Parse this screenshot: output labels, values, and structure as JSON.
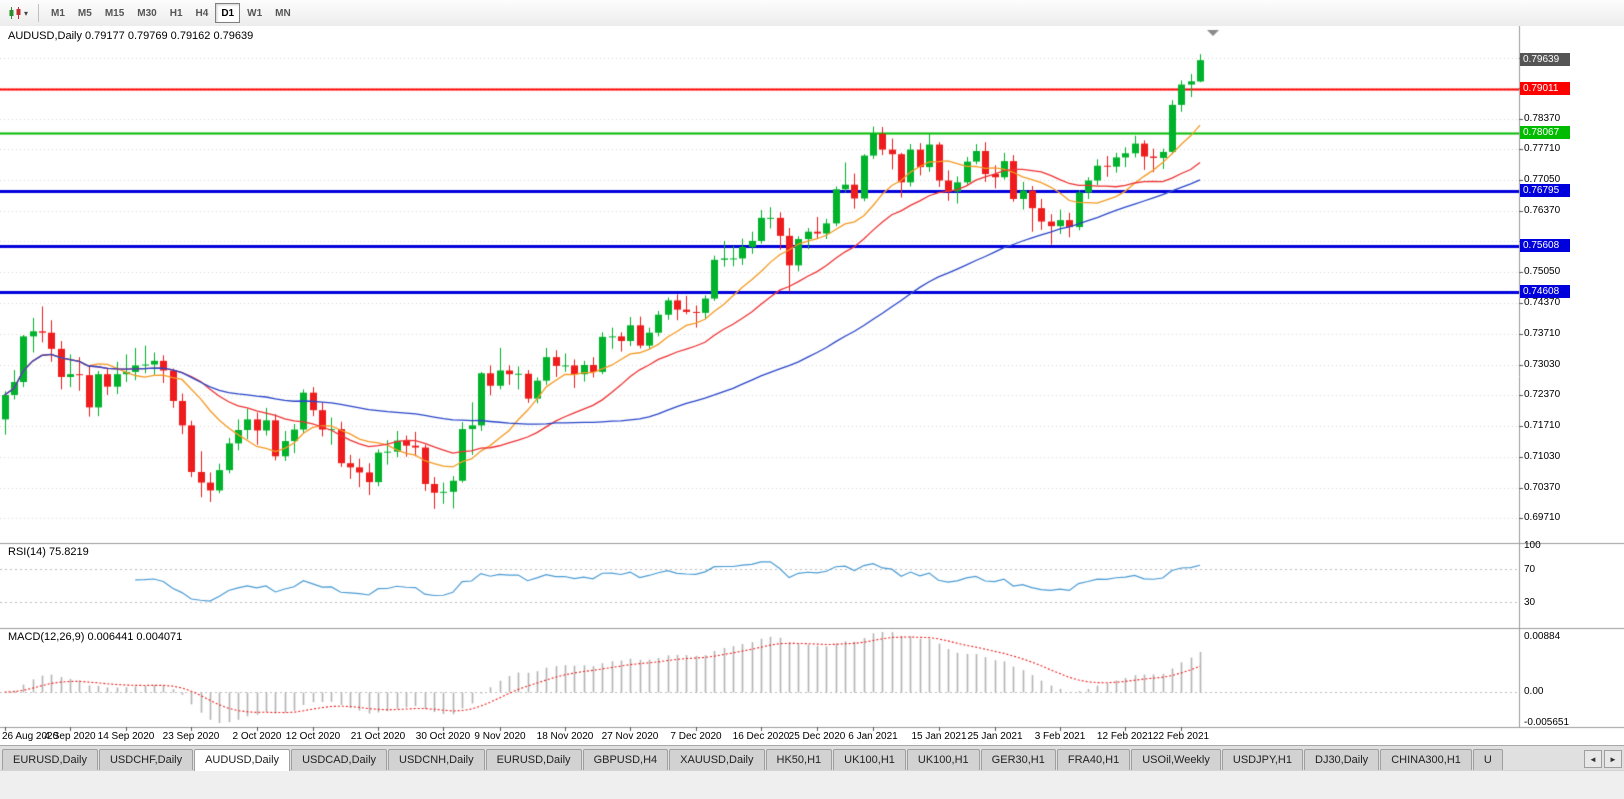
{
  "colors": {
    "bull": "#00b22c",
    "bear": "#ee1c1c",
    "grid": "#d8d8d8",
    "rsi_line": "#4a9bd4",
    "macd_hist": "#b4b4b4",
    "macd_signal": "#ee2222",
    "badge_current_bg": "#555555",
    "panel_border": "#9a9a9a",
    "level_dotted": "#bdbdbd",
    "tick": "#555555",
    "shift_marker": "#8a8a8a"
  },
  "toolbar": {
    "timeframes": [
      "M1",
      "M5",
      "M15",
      "M30",
      "H1",
      "H4",
      "D1",
      "W1",
      "MN"
    ],
    "active_timeframe": "D1"
  },
  "chart_data": {
    "type": "candlestick",
    "symbol": "AUDUSD",
    "timeframe": "Daily",
    "header": "AUDUSD,Daily  0.79177 0.79769 0.79162 0.79639",
    "ohlc_display": [
      "0.79177",
      "0.79769",
      "0.79162",
      "0.79639"
    ],
    "price_range": [
      0.6917,
      0.8038
    ],
    "current_price": {
      "label": "0.79639",
      "value": 0.79639
    },
    "hlines": [
      {
        "value": 0.79011,
        "label": "0.79011",
        "color": "#ff0000",
        "width": 2
      },
      {
        "value": 0.78067,
        "label": "0.78067",
        "color": "#00bb00",
        "width": 2
      },
      {
        "value": 0.76795,
        "label": "0.76795",
        "color": "#0000dd",
        "width": 3
      },
      {
        "value": 0.75608,
        "label": "0.75608",
        "color": "#0000dd",
        "width": 3
      },
      {
        "value": 0.74608,
        "label": "0.74608",
        "color": "#0000dd",
        "width": 3
      }
    ],
    "moving_averages": [
      {
        "period": 10,
        "color": "#f59a23"
      },
      {
        "period": 20,
        "color": "#ee3333"
      },
      {
        "period": 50,
        "color": "#2946c8"
      }
    ],
    "x_tick_labels": [
      "26 Aug 2020",
      "4 Sep 2020",
      "14 Sep 2020",
      "23 Sep 2020",
      "2 Oct 2020",
      "12 Oct 2020",
      "21 Oct 2020",
      "30 Oct 2020",
      "9 Nov 2020",
      "18 Nov 2020",
      "27 Nov 2020",
      "7 Dec 2020",
      "16 Dec 2020",
      "25 Dec 2020",
      "6 Jan 2021",
      "15 Jan 2021",
      "25 Jan 2021",
      "3 Feb 2021",
      "12 Feb 2021",
      "22 Feb 2021"
    ],
    "x_tick_indexes": [
      0,
      7,
      13,
      20,
      27,
      33,
      40,
      47,
      53,
      60,
      67,
      74,
      81,
      87,
      93,
      100,
      106,
      113,
      120,
      126
    ],
    "candles": [
      [
        0.7185,
        0.7246,
        0.7152,
        0.7238
      ],
      [
        0.7238,
        0.7292,
        0.7228,
        0.7266
      ],
      [
        0.7266,
        0.7368,
        0.7255,
        0.7365
      ],
      [
        0.7365,
        0.7405,
        0.733,
        0.7376
      ],
      [
        0.7376,
        0.743,
        0.7352,
        0.7373
      ],
      [
        0.7373,
        0.74,
        0.731,
        0.7338
      ],
      [
        0.7338,
        0.7355,
        0.725,
        0.7277
      ],
      [
        0.7277,
        0.7326,
        0.7255,
        0.7283
      ],
      [
        0.7283,
        0.732,
        0.7247,
        0.7281
      ],
      [
        0.7281,
        0.73,
        0.7191,
        0.7211
      ],
      [
        0.7211,
        0.729,
        0.7192,
        0.7283
      ],
      [
        0.7283,
        0.7297,
        0.7238,
        0.7256
      ],
      [
        0.7256,
        0.731,
        0.724,
        0.7283
      ],
      [
        0.7283,
        0.7326,
        0.7266,
        0.7288
      ],
      [
        0.7288,
        0.734,
        0.727,
        0.7302
      ],
      [
        0.7302,
        0.7345,
        0.7285,
        0.7304
      ],
      [
        0.7304,
        0.733,
        0.7282,
        0.7312
      ],
      [
        0.7312,
        0.7324,
        0.7264,
        0.7291
      ],
      [
        0.7291,
        0.7295,
        0.721,
        0.7225
      ],
      [
        0.7225,
        0.7241,
        0.7153,
        0.7172
      ],
      [
        0.7172,
        0.7182,
        0.706,
        0.7071
      ],
      [
        0.7071,
        0.7116,
        0.7016,
        0.7048
      ],
      [
        0.7048,
        0.707,
        0.7006,
        0.7031
      ],
      [
        0.7031,
        0.7089,
        0.7025,
        0.7075
      ],
      [
        0.7075,
        0.7145,
        0.7068,
        0.7133
      ],
      [
        0.7133,
        0.7185,
        0.7118,
        0.7162
      ],
      [
        0.7162,
        0.7208,
        0.7142,
        0.7185
      ],
      [
        0.7185,
        0.72,
        0.713,
        0.7161
      ],
      [
        0.7161,
        0.721,
        0.715,
        0.7183
      ],
      [
        0.7183,
        0.7196,
        0.7096,
        0.7105
      ],
      [
        0.7105,
        0.716,
        0.7095,
        0.7138
      ],
      [
        0.7138,
        0.7175,
        0.7112,
        0.7163
      ],
      [
        0.7163,
        0.725,
        0.7155,
        0.7243
      ],
      [
        0.7243,
        0.7255,
        0.7192,
        0.7205
      ],
      [
        0.7205,
        0.7222,
        0.7148,
        0.7163
      ],
      [
        0.7163,
        0.7189,
        0.713,
        0.7164
      ],
      [
        0.7164,
        0.718,
        0.7082,
        0.709
      ],
      [
        0.709,
        0.7108,
        0.7056,
        0.7081
      ],
      [
        0.7081,
        0.71,
        0.7038,
        0.707
      ],
      [
        0.707,
        0.709,
        0.7021,
        0.7049
      ],
      [
        0.7049,
        0.712,
        0.704,
        0.7113
      ],
      [
        0.7113,
        0.714,
        0.7087,
        0.7115
      ],
      [
        0.7115,
        0.716,
        0.7103,
        0.7139
      ],
      [
        0.7139,
        0.715,
        0.7104,
        0.7128
      ],
      [
        0.7128,
        0.7158,
        0.7105,
        0.7124
      ],
      [
        0.7124,
        0.713,
        0.703,
        0.7045
      ],
      [
        0.7045,
        0.706,
        0.6991,
        0.7026
      ],
      [
        0.7026,
        0.7048,
        0.7002,
        0.7028
      ],
      [
        0.7028,
        0.7062,
        0.6992,
        0.7052
      ],
      [
        0.7052,
        0.7179,
        0.7048,
        0.7164
      ],
      [
        0.7164,
        0.7222,
        0.7108,
        0.7172
      ],
      [
        0.7172,
        0.7288,
        0.716,
        0.7285
      ],
      [
        0.7285,
        0.7302,
        0.7237,
        0.7258
      ],
      [
        0.7258,
        0.734,
        0.725,
        0.7291
      ],
      [
        0.7291,
        0.7302,
        0.726,
        0.7283
      ],
      [
        0.7283,
        0.73,
        0.725,
        0.7284
      ],
      [
        0.7284,
        0.7292,
        0.7221,
        0.723
      ],
      [
        0.723,
        0.7276,
        0.722,
        0.7269
      ],
      [
        0.7269,
        0.734,
        0.726,
        0.732
      ],
      [
        0.732,
        0.7335,
        0.7277,
        0.7301
      ],
      [
        0.7301,
        0.7328,
        0.7288,
        0.7302
      ],
      [
        0.7302,
        0.7315,
        0.7253,
        0.7283
      ],
      [
        0.7283,
        0.7312,
        0.7267,
        0.7303
      ],
      [
        0.7303,
        0.732,
        0.7276,
        0.7288
      ],
      [
        0.7288,
        0.7374,
        0.7283,
        0.7364
      ],
      [
        0.7364,
        0.7384,
        0.7338,
        0.7365
      ],
      [
        0.7365,
        0.7374,
        0.7332,
        0.7355
      ],
      [
        0.7355,
        0.7407,
        0.7344,
        0.7389
      ],
      [
        0.7389,
        0.7408,
        0.7339,
        0.7345
      ],
      [
        0.7345,
        0.7384,
        0.7338,
        0.7373
      ],
      [
        0.7373,
        0.742,
        0.7365,
        0.7412
      ],
      [
        0.7412,
        0.7449,
        0.7401,
        0.7443
      ],
      [
        0.7443,
        0.7456,
        0.74,
        0.7423
      ],
      [
        0.7423,
        0.7453,
        0.7413,
        0.7418
      ],
      [
        0.7418,
        0.7432,
        0.7384,
        0.7416
      ],
      [
        0.7416,
        0.7454,
        0.7402,
        0.7447
      ],
      [
        0.7447,
        0.754,
        0.7442,
        0.7531
      ],
      [
        0.7531,
        0.7572,
        0.7516,
        0.7534
      ],
      [
        0.7534,
        0.7561,
        0.7517,
        0.7534
      ],
      [
        0.7534,
        0.7577,
        0.752,
        0.7559
      ],
      [
        0.7559,
        0.7592,
        0.7544,
        0.7572
      ],
      [
        0.7572,
        0.7639,
        0.7566,
        0.7622
      ],
      [
        0.7622,
        0.7645,
        0.7599,
        0.7622
      ],
      [
        0.7622,
        0.7634,
        0.7553,
        0.7583
      ],
      [
        0.7583,
        0.76,
        0.7462,
        0.7519
      ],
      [
        0.7519,
        0.7582,
        0.7506,
        0.7576
      ],
      [
        0.7576,
        0.76,
        0.7554,
        0.7592
      ],
      [
        0.7592,
        0.7624,
        0.7577,
        0.7588
      ],
      [
        0.7588,
        0.762,
        0.7576,
        0.761
      ],
      [
        0.761,
        0.769,
        0.7604,
        0.7684
      ],
      [
        0.7684,
        0.7742,
        0.7677,
        0.7694
      ],
      [
        0.7694,
        0.7718,
        0.7642,
        0.7664
      ],
      [
        0.7664,
        0.776,
        0.7658,
        0.7757
      ],
      [
        0.7757,
        0.782,
        0.775,
        0.7804
      ],
      [
        0.7804,
        0.7819,
        0.7758,
        0.777
      ],
      [
        0.777,
        0.7794,
        0.7727,
        0.776
      ],
      [
        0.776,
        0.7763,
        0.7666,
        0.7699
      ],
      [
        0.7699,
        0.7782,
        0.769,
        0.777
      ],
      [
        0.777,
        0.7784,
        0.7714,
        0.7732
      ],
      [
        0.7732,
        0.7805,
        0.7722,
        0.7781
      ],
      [
        0.7781,
        0.7786,
        0.7689,
        0.7703
      ],
      [
        0.7703,
        0.7725,
        0.7659,
        0.7679
      ],
      [
        0.7679,
        0.7712,
        0.7653,
        0.7699
      ],
      [
        0.7699,
        0.7754,
        0.7694,
        0.7744
      ],
      [
        0.7744,
        0.7782,
        0.7738,
        0.7767
      ],
      [
        0.7767,
        0.7786,
        0.77,
        0.7717
      ],
      [
        0.7717,
        0.7736,
        0.7686,
        0.771
      ],
      [
        0.771,
        0.7763,
        0.7705,
        0.7745
      ],
      [
        0.7745,
        0.7758,
        0.7657,
        0.7663
      ],
      [
        0.7663,
        0.77,
        0.764,
        0.7681
      ],
      [
        0.7681,
        0.7691,
        0.7592,
        0.7643
      ],
      [
        0.7643,
        0.7663,
        0.7596,
        0.7614
      ],
      [
        0.7614,
        0.763,
        0.7564,
        0.7604
      ],
      [
        0.7604,
        0.764,
        0.7587,
        0.7617
      ],
      [
        0.7617,
        0.7633,
        0.758,
        0.7602
      ],
      [
        0.7602,
        0.7682,
        0.7595,
        0.7677
      ],
      [
        0.7677,
        0.771,
        0.7663,
        0.7703
      ],
      [
        0.7703,
        0.7749,
        0.7693,
        0.7735
      ],
      [
        0.7735,
        0.7756,
        0.7711,
        0.7733
      ],
      [
        0.7733,
        0.7763,
        0.772,
        0.7753
      ],
      [
        0.7753,
        0.7775,
        0.7732,
        0.7762
      ],
      [
        0.7762,
        0.78,
        0.7753,
        0.7783
      ],
      [
        0.7783,
        0.779,
        0.7726,
        0.7755
      ],
      [
        0.7755,
        0.7772,
        0.7721,
        0.7752
      ],
      [
        0.7752,
        0.7772,
        0.7728,
        0.7765
      ],
      [
        0.7765,
        0.7877,
        0.776,
        0.7867
      ],
      [
        0.7867,
        0.792,
        0.7852,
        0.7911
      ],
      [
        0.7911,
        0.7934,
        0.7884,
        0.7918
      ],
      [
        0.79177,
        0.79769,
        0.79162,
        0.79639
      ]
    ],
    "rsi": {
      "label": "RSI(14) 75.8219",
      "period": 14,
      "value": 75.8219,
      "range": [
        0,
        100
      ],
      "levels": [
        70,
        30
      ],
      "axis_labels": [
        "100",
        "70",
        "30"
      ]
    },
    "macd": {
      "label": "MACD(12,26,9) 0.006441 0.004071",
      "fast": 12,
      "slow": 26,
      "signal": 9,
      "values_display": [
        "0.006441",
        "0.004071"
      ],
      "axis_labels": [
        "0.00884",
        "0.00",
        "-0.005651"
      ],
      "range": [
        -0.005651,
        0.00884
      ]
    }
  },
  "price_axis": {
    "grid_values": [
      0.7969,
      0.7903,
      0.7837,
      0.7771,
      0.7705,
      0.7637,
      0.7571,
      0.7505,
      0.7437,
      0.7371,
      0.7303,
      0.7237,
      0.7171,
      0.7103,
      0.7037,
      0.6971
    ],
    "labels": [
      "0.78370",
      "0.77710",
      "0.77050",
      "0.76370",
      "0.75050",
      "0.74370",
      "0.73710",
      "0.73030",
      "0.72370",
      "0.71710",
      "0.71030",
      "0.70370",
      "0.69710"
    ]
  },
  "tabs": {
    "labels": [
      "EURUSD,Daily",
      "USDCHF,Daily",
      "AUDUSD,Daily",
      "USDCAD,Daily",
      "USDCNH,Daily",
      "EURUSD,Daily",
      "GBPUSD,H4",
      "XAUUSD,Daily",
      "HK50,H1",
      "UK100,H1",
      "UK100,H1",
      "GER30,H1",
      "FRA40,H1",
      "USOil,Weekly",
      "USDJPY,H1",
      "DJ30,Daily",
      "CHINA300,H1",
      "U"
    ],
    "active_index": 2,
    "scroll_left": "◄",
    "scroll_right": "►"
  }
}
